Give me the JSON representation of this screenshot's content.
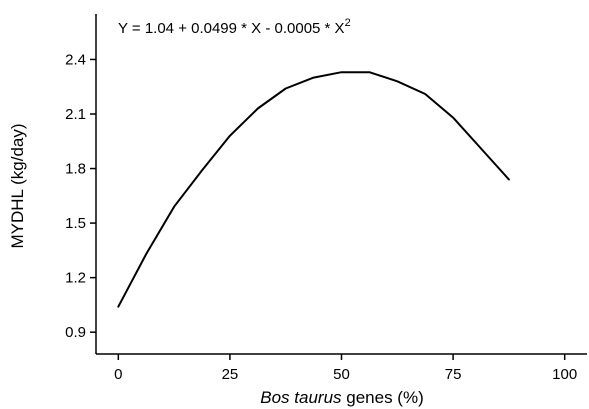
{
  "chart_data": {
    "type": "line",
    "equation": {
      "prefix": "Y = 1.04 + 0.0499 * X - 0.0005 * X",
      "superscript": "2"
    },
    "xlabel": {
      "italic_part": "Bos taurus",
      "rest": " genes (%)"
    },
    "ylabel": "MYDHL (kg/day)",
    "xlim": [
      -5,
      105
    ],
    "ylim": [
      0.78,
      2.65
    ],
    "xticks": [
      0,
      25,
      50,
      75,
      100
    ],
    "xtick_labels": [
      "0",
      "25",
      "50",
      "75",
      "100"
    ],
    "yticks": [
      0.9,
      1.2,
      1.5,
      1.8,
      2.1,
      2.4
    ],
    "ytick_labels": [
      "0.9",
      "1.2",
      "1.5",
      "1.8",
      "2.1",
      "2.4"
    ],
    "grid": false,
    "legend": "none",
    "series": [
      {
        "color": "#000000",
        "x": [
          0,
          6.25,
          12.5,
          18.75,
          25,
          31.25,
          37.5,
          43.75,
          50,
          56.25,
          62.5,
          68.75,
          75,
          81.25,
          87.5
        ],
        "y": [
          1.04,
          1.33,
          1.59,
          1.79,
          1.98,
          2.13,
          2.24,
          2.3,
          2.33,
          2.33,
          2.28,
          2.21,
          2.08,
          1.91,
          1.74
        ]
      }
    ]
  }
}
